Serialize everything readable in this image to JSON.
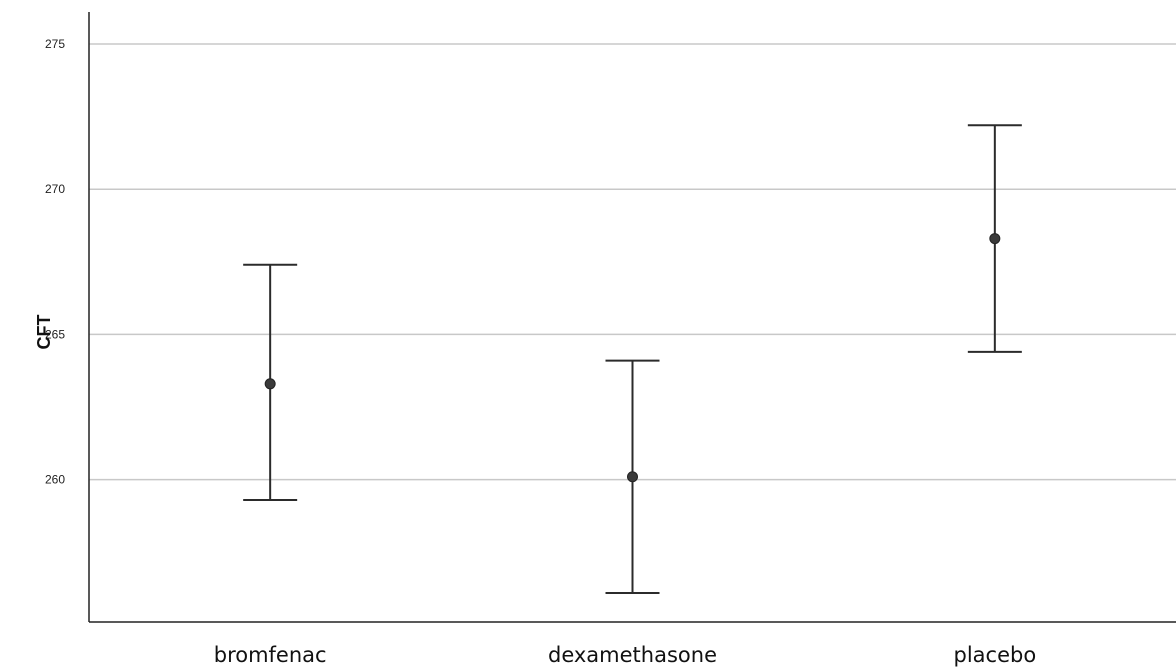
{
  "chart_data": {
    "type": "scatter",
    "title": "",
    "xlabel": "",
    "ylabel": "CFT",
    "categories": [
      "bromfenac",
      "dexamethasone",
      "placebo"
    ],
    "series": [
      {
        "mean": [
          263.3,
          260.1,
          268.3
        ],
        "error_low": [
          259.3,
          256.1,
          264.4
        ],
        "error_high": [
          267.4,
          264.1,
          272.2
        ]
      }
    ],
    "ylim": [
      255.1,
      276.1
    ],
    "yticks": [
      260,
      265,
      270,
      275
    ],
    "ytick_labels": [
      "260",
      "265",
      "270",
      "275"
    ],
    "grid": true,
    "legend": "none"
  }
}
